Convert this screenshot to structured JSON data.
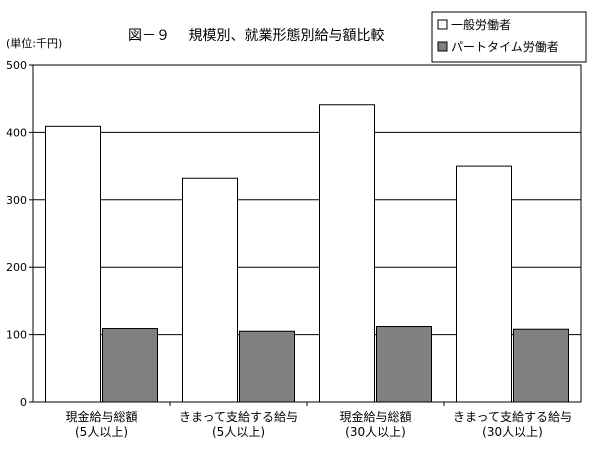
{
  "chart_data": {
    "type": "bar",
    "title": "図－９　 規模別、就業形態別給与額比較",
    "unit_label": "(単位:千円)",
    "categories": [
      [
        "現金給与総額",
        "(5人以上)"
      ],
      [
        "きまって支給する給与",
        "(5人以上)"
      ],
      [
        "現金給与総額",
        "(30人以上)"
      ],
      [
        "きまって支給する給与",
        "(30人以上)"
      ]
    ],
    "series": [
      {
        "name": "一般労働者",
        "values": [
          409,
          332,
          441,
          350
        ],
        "color": "#ffffff"
      },
      {
        "name": "パートタイム労働者",
        "values": [
          109,
          105,
          112,
          108
        ],
        "color": "#808080"
      }
    ],
    "ylim": [
      0,
      500
    ],
    "yticks": [
      0,
      100,
      200,
      300,
      400,
      500
    ],
    "grid": true,
    "legend_position": "top-right"
  }
}
